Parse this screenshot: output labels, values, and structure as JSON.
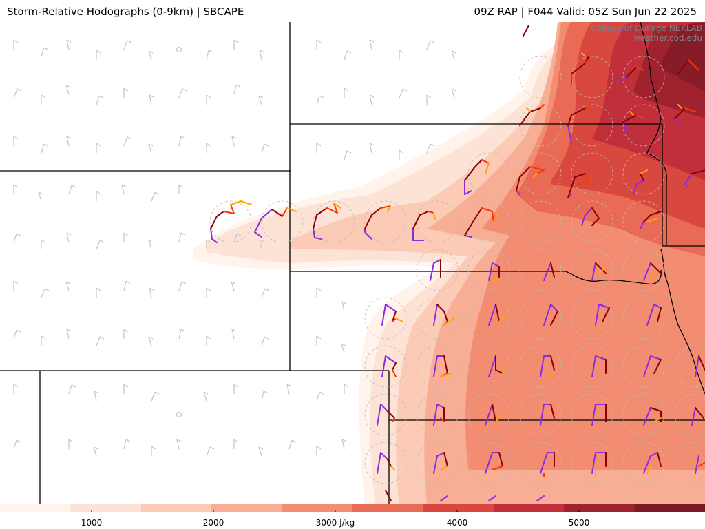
{
  "header": {
    "left_title": "Storm-Relative Hodographs (0-9km) | SBCAPE",
    "right_title": "09Z RAP | F044 Valid: 05Z Sun Jun 22 2025"
  },
  "credit": {
    "line1": "College of DuPage NEXLAB",
    "line2": "weather.cod.edu"
  },
  "colorbar": {
    "units_label": "J/kg",
    "min": 0,
    "max": 6000,
    "ticks": [
      {
        "value": 1000,
        "label": "1000"
      },
      {
        "value": 2000,
        "label": "2000"
      },
      {
        "value": 3000,
        "label": "3000 J/kg"
      },
      {
        "value": 4000,
        "label": "4000"
      },
      {
        "value": 5000,
        "label": "5000"
      }
    ],
    "colors": [
      "#fff3ec",
      "#fde3d6",
      "#fbcbb6",
      "#f8ae94",
      "#f38d72",
      "#ea6b55",
      "#d9483f",
      "#c1303a",
      "#a0222f",
      "#7a1a24"
    ]
  },
  "map": {
    "field": "SBCAPE",
    "hodograph_colors": [
      "#8a2be2",
      "#8b0000",
      "#ff3300",
      "#ffa500"
    ],
    "barb_color": "#c8c8c8",
    "border_color": "#000000"
  }
}
